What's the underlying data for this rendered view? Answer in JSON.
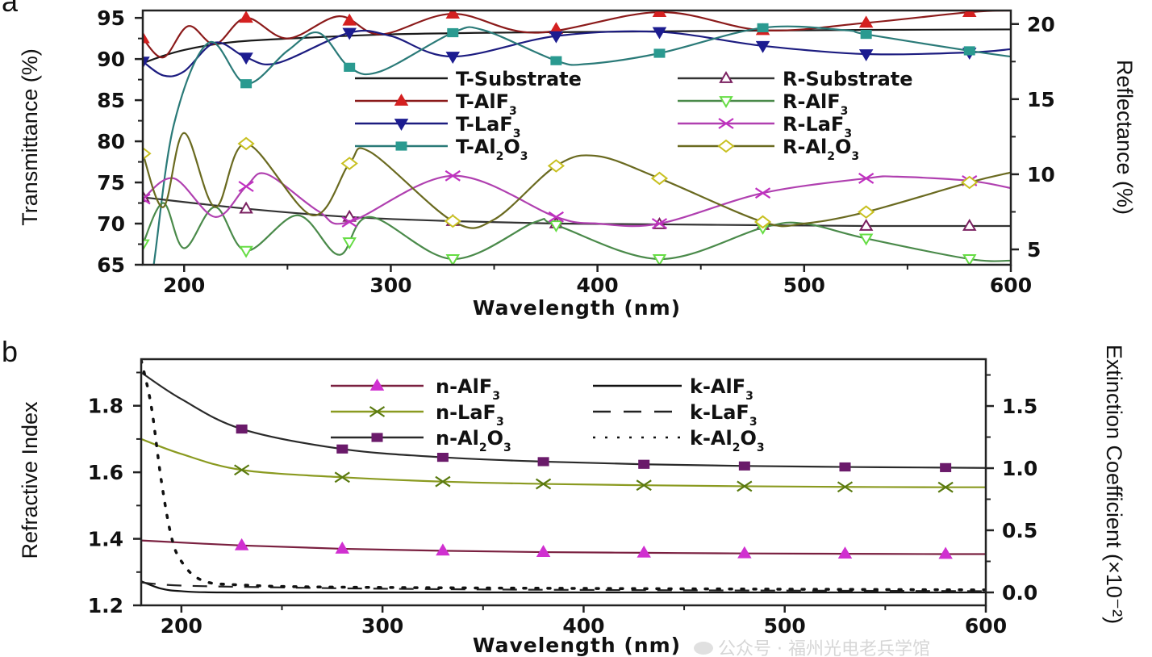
{
  "chart_data": [
    {
      "panel_label": "a",
      "type": "line",
      "xlabel": "Wavelength (nm)",
      "ylabel": "Transmittance (%)",
      "ylabel_right": "Reflectance (%)",
      "xlim": [
        180,
        600
      ],
      "ylim": [
        65,
        95.9
      ],
      "ylim_right": [
        3.98,
        20.9
      ],
      "xticks": [
        200,
        300,
        400,
        500,
        600
      ],
      "yticks": [
        65,
        70,
        75,
        80,
        85,
        90,
        95
      ],
      "yticks_right": [
        5,
        10,
        15,
        20
      ],
      "grid": false,
      "legend_position": "center-right",
      "series": [
        {
          "name": "T-Substrate",
          "axis": "left",
          "color": "#1a1a1a",
          "marker": "none",
          "x": [
            180,
            190,
            200,
            215,
            230,
            260,
            300,
            350,
            400,
            500,
            600
          ],
          "y": [
            89.5,
            90.4,
            91.1,
            91.8,
            92.2,
            92.6,
            93.0,
            93.2,
            93.3,
            93.5,
            93.6
          ]
        },
        {
          "name": "T-AlF3",
          "axis": "left",
          "color": "#8b1a1a",
          "marker_color": "#d42020",
          "marker": "triangle-up",
          "x": [
            180,
            190,
            202,
            215,
            230,
            250,
            275,
            295,
            330,
            370,
            430,
            480,
            530,
            580,
            600
          ],
          "y": [
            92.5,
            90.2,
            94.0,
            91.8,
            95.0,
            92.5,
            95.2,
            93.0,
            95.5,
            93.2,
            95.7,
            93.5,
            94.4,
            95.7,
            95.9
          ]
        },
        {
          "name": "T-LaF3",
          "axis": "left",
          "color": "#1c1c80",
          "marker_color": "#1c1c90",
          "marker": "triangle-down",
          "x": [
            180,
            190,
            200,
            215,
            230,
            245,
            280,
            300,
            330,
            380,
            430,
            480,
            530,
            580,
            600
          ],
          "y": [
            89.7,
            88.0,
            88.5,
            92.0,
            90.2,
            89.5,
            93.2,
            92.8,
            90.3,
            92.8,
            93.3,
            91.6,
            90.6,
            90.8,
            91.2
          ]
        },
        {
          "name": "T-Al2O3",
          "axis": "left",
          "color": "#2a7a78",
          "marker_color": "#2a9a90",
          "marker": "square",
          "x": [
            181,
            185,
            195,
            212,
            230,
            250,
            265,
            280,
            295,
            330,
            345,
            380,
            395,
            430,
            480,
            520,
            530,
            580,
            600
          ],
          "y": [
            60,
            64.5,
            82,
            92,
            87,
            91,
            93.2,
            89,
            88.5,
            93.2,
            93.5,
            89.8,
            89.4,
            90.7,
            93.8,
            93.5,
            93,
            91,
            90.3
          ]
        },
        {
          "name": "R-Substrate",
          "axis": "right",
          "color": "#333333",
          "marker_color": "#7a2060",
          "marker": "open-triangle-up",
          "x": [
            180,
            230,
            280,
            330,
            380,
            430,
            480,
            530,
            580,
            600
          ],
          "y": [
            8.47,
            7.71,
            7.16,
            6.88,
            6.72,
            6.67,
            6.61,
            6.56,
            6.56,
            6.56
          ]
        },
        {
          "name": "R-AlF3",
          "axis": "right",
          "color": "#4a8a4a",
          "marker_color": "#66dd44",
          "marker": "open-triangle-down",
          "x": [
            180,
            190,
            200,
            215,
            230,
            255,
            275,
            290,
            330,
            370,
            380,
            430,
            480,
            500,
            530,
            580,
            600
          ],
          "y": [
            5.35,
            8.09,
            5.08,
            7.82,
            4.91,
            7.27,
            4.64,
            7.16,
            4.36,
            6.83,
            6.61,
            4.36,
            6.45,
            6.72,
            5.73,
            4.36,
            4.25
          ]
        },
        {
          "name": "R-LaF3",
          "axis": "right",
          "color": "#b040b0",
          "marker_color": "#c030c0",
          "marker": "x",
          "x": [
            180,
            195,
            215,
            230,
            240,
            265,
            280,
            330,
            380,
            400,
            430,
            480,
            530,
            545,
            580,
            600
          ],
          "y": [
            8.36,
            9.73,
            7.16,
            9.19,
            10.01,
            7.54,
            6.83,
            9.9,
            7.16,
            6.72,
            6.72,
            8.75,
            9.73,
            9.84,
            9.57,
            9.08
          ]
        },
        {
          "name": "R-Al2O3",
          "axis": "right",
          "color": "#6a6a20",
          "marker_color": "#c8c020",
          "marker": "open-diamond",
          "x": [
            180,
            190,
            200,
            215,
            230,
            262,
            280,
            290,
            330,
            350,
            380,
            400,
            430,
            480,
            500,
            530,
            580,
            600
          ],
          "y": [
            11.38,
            7.82,
            12.75,
            7.82,
            12.04,
            7.27,
            10.72,
            11.49,
            6.88,
            6.99,
            10.56,
            11.21,
            9.73,
            6.83,
            6.72,
            7.49,
            9.46,
            10.12
          ]
        }
      ]
    },
    {
      "panel_label": "b",
      "type": "line",
      "xlabel": "Wavelength (nm)",
      "ylabel": "Refractive Index",
      "ylabel_right": "Extinction Coefficient (×10⁻²)",
      "xlim": [
        180,
        600
      ],
      "ylim": [
        1.2,
        1.94
      ],
      "ylim_right": [
        -0.104,
        1.877
      ],
      "xticks": [
        200,
        300,
        400,
        500,
        600
      ],
      "yticks": [
        1.2,
        1.4,
        1.6,
        1.8
      ],
      "yticks_right": [
        0.0,
        0.5,
        1.0,
        1.5
      ],
      "ytick_labels_right": [
        "0.0",
        "0.5",
        "1.0",
        "1.5"
      ],
      "grid": false,
      "legend_position": "top-center",
      "series": [
        {
          "name": "n-AlF3",
          "axis": "left",
          "color": "#7a2040",
          "marker_color": "#d030d0",
          "marker": "triangle-up",
          "x": [
            180,
            230,
            280,
            330,
            380,
            430,
            480,
            530,
            580,
            600
          ],
          "y": [
            1.395,
            1.38,
            1.37,
            1.364,
            1.36,
            1.358,
            1.356,
            1.355,
            1.354,
            1.354
          ]
        },
        {
          "name": "n-LaF3",
          "axis": "left",
          "color": "#8a9a20",
          "marker_color": "#5a7a10",
          "marker": "x",
          "x": [
            180,
            200,
            230,
            280,
            330,
            380,
            430,
            480,
            530,
            580,
            600
          ],
          "y": [
            1.7,
            1.655,
            1.607,
            1.585,
            1.572,
            1.565,
            1.561,
            1.558,
            1.556,
            1.555,
            1.555
          ]
        },
        {
          "name": "n-Al2O3",
          "axis": "left",
          "color": "#2a2a2a",
          "marker_color": "#6a1a6a",
          "marker": "square",
          "x": [
            180,
            200,
            230,
            280,
            330,
            380,
            430,
            480,
            530,
            580,
            600
          ],
          "y": [
            1.9,
            1.82,
            1.73,
            1.67,
            1.645,
            1.632,
            1.624,
            1.619,
            1.616,
            1.614,
            1.613
          ]
        },
        {
          "name": "k-AlF3",
          "axis": "right",
          "color": "#111111",
          "marker": "none",
          "dash": "solid",
          "x": [
            180,
            190,
            200,
            220,
            300,
            600
          ],
          "y": [
            0.09,
            0.03,
            0.01,
            0.0,
            0.0,
            0.0
          ]
        },
        {
          "name": "k-LaF3",
          "axis": "right",
          "color": "#222222",
          "marker": "none",
          "dash": "dashed",
          "x": [
            180,
            200,
            250,
            300,
            400,
            600
          ],
          "y": [
            0.08,
            0.055,
            0.04,
            0.03,
            0.02,
            0.01
          ]
        },
        {
          "name": "k-Al2O3",
          "axis": "right",
          "color": "#111111",
          "marker": "none",
          "dash": "dotted",
          "x": [
            180,
            185,
            190,
            195,
            200,
            210,
            230,
            300,
            600
          ],
          "y": [
            1.87,
            1.5,
            0.9,
            0.45,
            0.25,
            0.1,
            0.06,
            0.04,
            0.02
          ]
        }
      ]
    }
  ],
  "watermark": "公众号 · 福州光电老兵学馆"
}
